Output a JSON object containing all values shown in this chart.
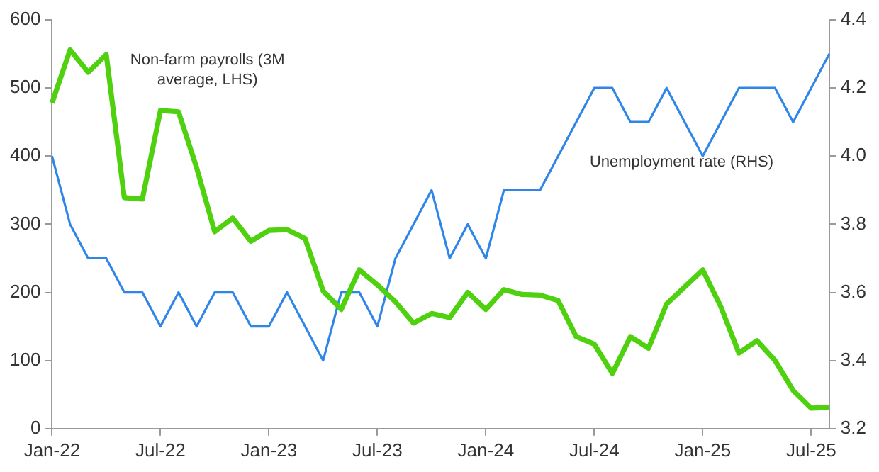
{
  "chart_data": {
    "type": "line",
    "categories": [
      "Jan-22",
      null,
      null,
      null,
      null,
      null,
      "Jul-22",
      null,
      null,
      null,
      null,
      null,
      "Jan-23",
      null,
      null,
      null,
      null,
      null,
      "Jul-23",
      null,
      null,
      null,
      null,
      null,
      "Jan-24",
      null,
      null,
      null,
      null,
      null,
      "Jul-24",
      null,
      null,
      null,
      null,
      null,
      "Jan-25",
      null,
      null,
      null,
      null,
      null,
      "Jul-25",
      null
    ],
    "series": [
      {
        "name": "Non-farm payrolls (3M average, LHS)",
        "color": "#4fd10f",
        "values": [
          478,
          556,
          523,
          549,
          339,
          337,
          467,
          465,
          383,
          289,
          309,
          275,
          291,
          292,
          279,
          202,
          175,
          233,
          211,
          186,
          155,
          169,
          163,
          200,
          175,
          204,
          197,
          196,
          188,
          135,
          124,
          81,
          135,
          118,
          183,
          208,
          233,
          179,
          111,
          129,
          100,
          56,
          30,
          31
        ]
      },
      {
        "name": "Unemployment rate (RHS)",
        "color": "#2f86e8",
        "axis": "y2",
        "values": [
          4.0,
          3.8,
          3.7,
          3.7,
          3.6,
          3.6,
          3.5,
          3.6,
          3.5,
          3.6,
          3.6,
          3.5,
          3.5,
          3.6,
          3.5,
          3.4,
          3.6,
          3.6,
          3.5,
          3.7,
          3.8,
          3.9,
          3.7,
          3.8,
          3.7,
          3.9,
          3.9,
          3.9,
          4.0,
          4.1,
          4.2,
          4.2,
          4.1,
          4.1,
          4.2,
          4.1,
          4.0,
          4.1,
          4.2,
          4.2,
          4.2,
          4.1,
          4.2,
          4.3
        ]
      }
    ],
    "ylim": [
      0,
      600
    ],
    "yticks": [
      0,
      100,
      200,
      300,
      400,
      500,
      600
    ],
    "y2lim": [
      3.2,
      4.4
    ],
    "y2ticks": [
      {
        "value": 3.2,
        "label": "3.2"
      },
      {
        "value": 3.4,
        "label": "3.4"
      },
      {
        "value": 3.6,
        "label": "3.6"
      },
      {
        "value": 3.8,
        "label": "3.8"
      },
      {
        "value": 4.0,
        "label": "4.0"
      },
      {
        "value": 4.2,
        "label": "4.2"
      },
      {
        "value": 4.4,
        "label": "4.4"
      }
    ],
    "grid": false,
    "legend": false,
    "marker": "none",
    "line_style": "solid"
  }
}
